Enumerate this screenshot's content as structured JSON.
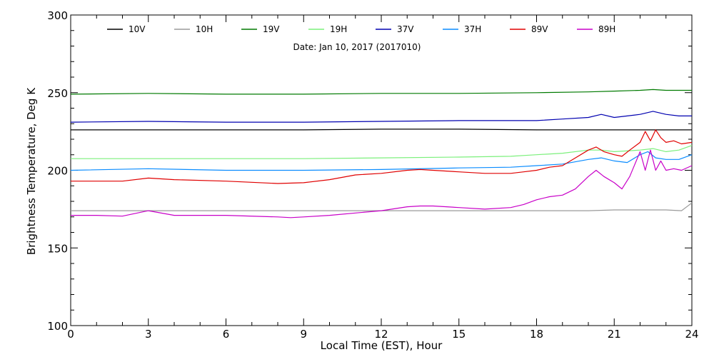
{
  "chart_data": {
    "type": "line",
    "title": "",
    "subtitle": "Date: Jan 10, 2017 (2017010)",
    "xlabel": "Local Time (EST), Hour",
    "ylabel": "Brightness Temperature, Deg K",
    "xlim": [
      0,
      24
    ],
    "ylim": [
      100,
      300
    ],
    "xticks": [
      0,
      3,
      6,
      9,
      12,
      15,
      18,
      21,
      24
    ],
    "yticks": [
      100,
      150,
      200,
      250,
      300
    ],
    "grid": false,
    "legend_position": "top",
    "series": [
      {
        "name": "10V",
        "color": "#000000",
        "x": [
          0,
          3,
          6,
          9,
          12,
          15,
          18,
          20,
          21,
          22,
          23,
          24
        ],
        "y": [
          226,
          226,
          226,
          226,
          226.5,
          226.5,
          226,
          226,
          226,
          226,
          226,
          226
        ]
      },
      {
        "name": "10H",
        "color": "#9a9a9a",
        "x": [
          0,
          3,
          6,
          9,
          12,
          15,
          18,
          20,
          21,
          22,
          23,
          23.6,
          24
        ],
        "y": [
          174,
          174,
          174,
          174,
          174,
          174,
          174,
          174,
          174.5,
          174.5,
          174.5,
          174,
          179
        ]
      },
      {
        "name": "19V",
        "color": "#007a00",
        "x": [
          0,
          3,
          6,
          9,
          12,
          15,
          18,
          20,
          21,
          22,
          22.5,
          23,
          24
        ],
        "y": [
          249,
          249.5,
          249,
          249,
          249.5,
          249.5,
          250,
          250.5,
          251,
          251.5,
          252,
          251.5,
          251.5
        ]
      },
      {
        "name": "19H",
        "color": "#7cf07c",
        "x": [
          0,
          3,
          6,
          9,
          12,
          15,
          17,
          18,
          19,
          20,
          20.5,
          21,
          22,
          22.5,
          23,
          23.5,
          24
        ],
        "y": [
          207.5,
          207.5,
          207.5,
          207.5,
          208,
          208.5,
          209,
          210,
          211,
          213,
          213,
          212,
          213,
          214,
          212,
          213,
          216
        ]
      },
      {
        "name": "37V",
        "color": "#0000b0",
        "x": [
          0,
          3,
          6,
          9,
          12,
          15,
          18,
          19,
          20,
          20.5,
          21,
          22,
          22.5,
          23,
          23.5,
          24
        ],
        "y": [
          231,
          231.5,
          231,
          231,
          231.5,
          232,
          232,
          233,
          234,
          236,
          234,
          236,
          238,
          236,
          235,
          235
        ]
      },
      {
        "name": "37H",
        "color": "#0a8cff",
        "x": [
          0,
          3,
          6,
          9,
          12,
          15,
          17,
          18,
          19,
          20,
          20.5,
          21,
          21.5,
          22,
          22.3,
          22.6,
          23,
          23.5,
          24
        ],
        "y": [
          200,
          201,
          200,
          200,
          200.5,
          201.5,
          202,
          203,
          204,
          207,
          208,
          206,
          205,
          210,
          212,
          208,
          207,
          207,
          210
        ]
      },
      {
        "name": "89V",
        "color": "#e00000",
        "x": [
          0,
          1,
          2,
          3,
          4,
          6,
          8,
          9,
          10,
          11,
          12,
          13,
          13.5,
          14,
          15,
          16,
          17,
          17.5,
          18,
          18.5,
          19,
          19.5,
          20,
          20.3,
          20.6,
          21,
          21.3,
          21.6,
          22,
          22.2,
          22.4,
          22.6,
          22.8,
          23,
          23.3,
          23.6,
          24
        ],
        "y": [
          193,
          193,
          193,
          195,
          194,
          193,
          191.5,
          192,
          194,
          197,
          198,
          200,
          200.5,
          200,
          199,
          198,
          198,
          199,
          200,
          202,
          203,
          208,
          213,
          215,
          212,
          210,
          209,
          213,
          218,
          225,
          219,
          226,
          221,
          218,
          219,
          217,
          218
        ]
      },
      {
        "name": "89H",
        "color": "#c800c8",
        "x": [
          0,
          1,
          2,
          3,
          4,
          6,
          8,
          8.5,
          9,
          10,
          11,
          12,
          13,
          13.5,
          14,
          15,
          16,
          17,
          17.5,
          18,
          18.5,
          19,
          19.5,
          20,
          20.3,
          20.6,
          21,
          21.3,
          21.6,
          22,
          22.2,
          22.4,
          22.6,
          22.8,
          23,
          23.3,
          23.6,
          24
        ],
        "y": [
          171,
          171,
          170.5,
          174,
          171,
          171,
          170,
          169.5,
          170,
          171,
          172.5,
          174,
          176.5,
          177,
          177,
          176,
          175,
          176,
          178,
          181,
          183,
          184,
          188,
          196,
          200,
          196,
          192,
          188,
          196,
          212,
          200,
          213,
          200,
          206,
          200,
          201,
          200,
          203
        ]
      }
    ]
  }
}
